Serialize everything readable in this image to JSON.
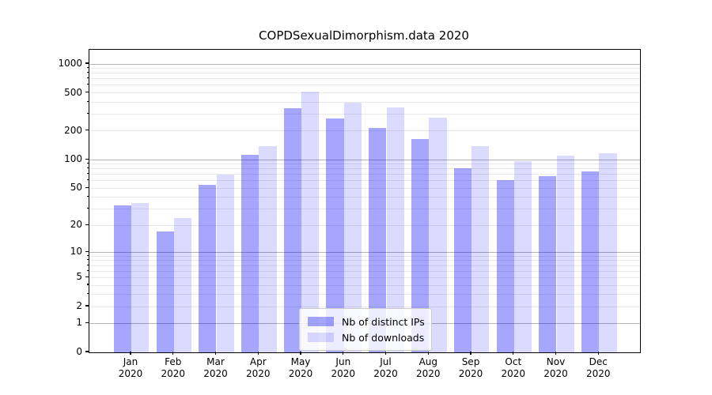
{
  "title": "COPDSexualDimorphism.data 2020",
  "chart_data": {
    "type": "bar",
    "title": "COPDSexualDimorphism.data 2020",
    "categories": [
      "Jan 2020",
      "Feb 2020",
      "Mar 2020",
      "Apr 2020",
      "May 2020",
      "Jun 2020",
      "Jul 2020",
      "Aug 2020",
      "Sep 2020",
      "Oct 2020",
      "Nov 2020",
      "Dec 2020"
    ],
    "months": [
      "Jan",
      "Feb",
      "Mar",
      "Apr",
      "May",
      "Jun",
      "Jul",
      "Aug",
      "Sep",
      "Oct",
      "Nov",
      "Dec"
    ],
    "year": "2020",
    "series": [
      {
        "name": "Nb of distinct IPs",
        "values": [
          33,
          17,
          54,
          113,
          345,
          272,
          215,
          166,
          82,
          61,
          67,
          76
        ]
      },
      {
        "name": "Nb of downloads",
        "values": [
          35,
          24,
          70,
          140,
          520,
          398,
          350,
          277,
          140,
          97,
          111,
          117
        ]
      }
    ],
    "yscale": "log1p",
    "yticks": [
      0,
      1,
      2,
      5,
      10,
      20,
      50,
      100,
      200,
      500,
      1000
    ],
    "ylim": [
      0,
      1405
    ],
    "grid": "on",
    "legend_position": "lower center"
  },
  "colors": {
    "ips_bar_hex": "#a6a6f7",
    "downloads_bar_hex": "#dedefb",
    "ips_bar_rgba": "rgba(0,0,255,0.35)",
    "downloads_bar_rgba": "rgba(0,0,255,0.14)",
    "grid_major": "#b3b3b3",
    "grid_minor": "#e9e9e9",
    "axis": "#000000"
  },
  "legend": {
    "items": [
      {
        "label": "Nb of distinct IPs",
        "color_hex": "#a6a6f7",
        "color_rgba": "rgba(0,0,255,0.35)"
      },
      {
        "label": "Nb of downloads",
        "color_hex": "#dedefb",
        "color_rgba": "rgba(0,0,255,0.14)"
      }
    ]
  }
}
